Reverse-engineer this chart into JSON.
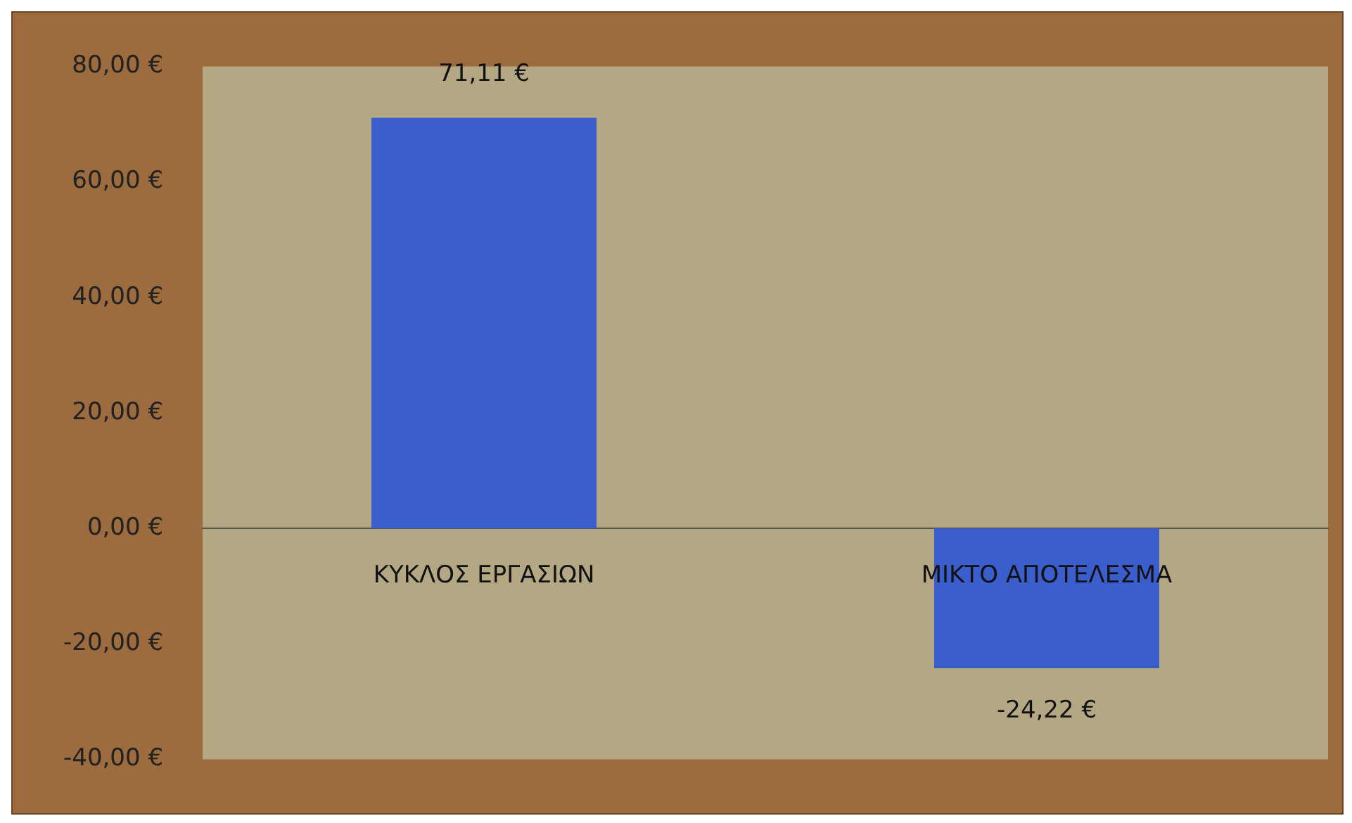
{
  "chart_data": {
    "type": "bar",
    "categories": [
      "ΚΥΚΛΟΣ ΕΡΓΑΣΙΩΝ",
      "ΜΙΚΤΟ ΑΠΟΤΕΛΕΣΜΑ"
    ],
    "values": [
      71.11,
      -24.22
    ],
    "color": "#3a5fcd",
    "value_labels": [
      "71,11 €",
      "-24,22 €"
    ],
    "ylim": [
      -40,
      80
    ],
    "yticks": [
      {
        "value": -40,
        "label": "-40,00 €"
      },
      {
        "value": -20,
        "label": "-20,00 €"
      },
      {
        "value": 0,
        "label": "0,00 €"
      },
      {
        "value": 20,
        "label": "20,00 €"
      },
      {
        "value": 40,
        "label": "40,00 €"
      },
      {
        "value": 60,
        "label": "60,00 €"
      },
      {
        "value": 80,
        "label": "80,00 €"
      }
    ],
    "grid": false,
    "legend": false
  }
}
